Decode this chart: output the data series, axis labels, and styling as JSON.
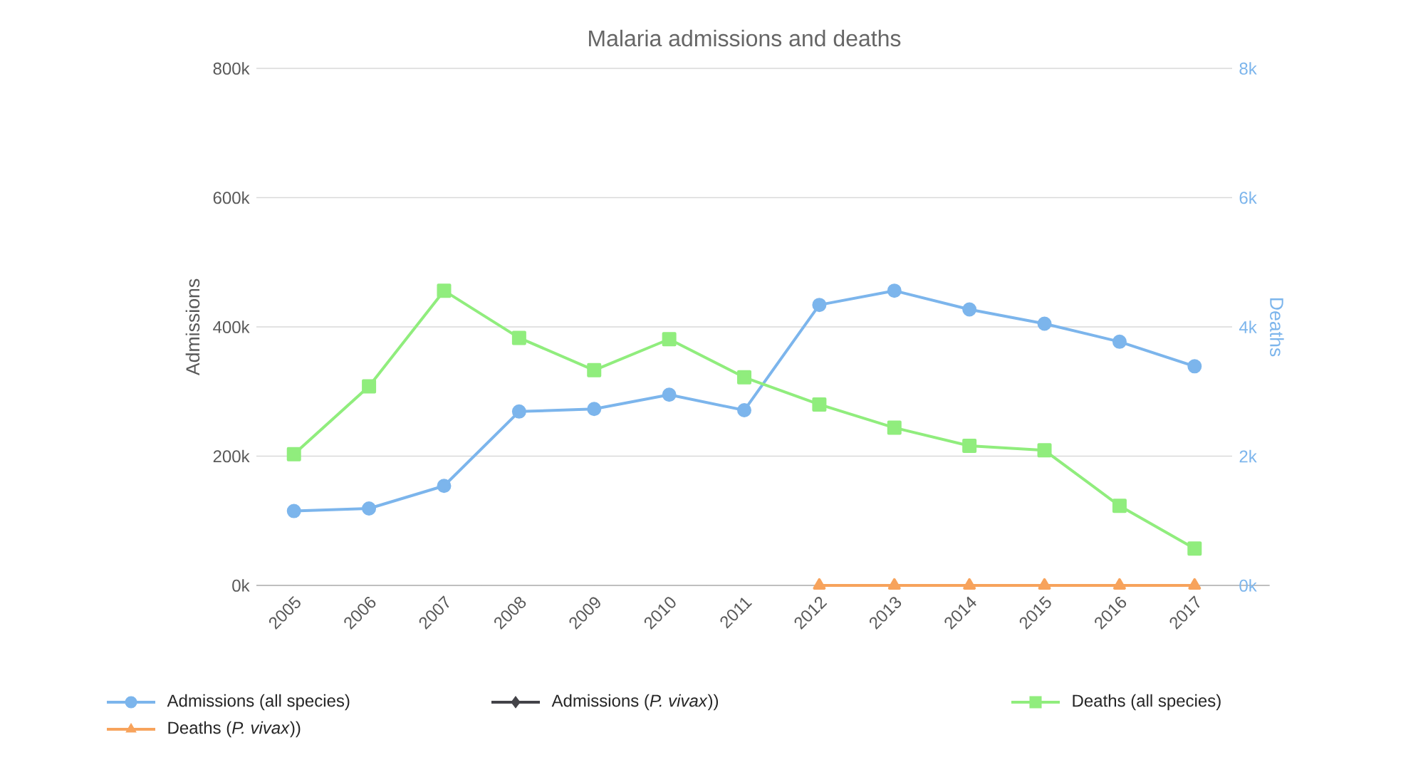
{
  "chart_data": {
    "type": "line",
    "title": "Malaria admissions and deaths",
    "categories": [
      "2005",
      "2006",
      "2007",
      "2008",
      "2009",
      "2010",
      "2011",
      "2012",
      "2013",
      "2014",
      "2015",
      "2016",
      "2017"
    ],
    "series": [
      {
        "name": "Admissions (all species)",
        "color": "#7cb5ec",
        "marker": "circle",
        "values": [
          115000,
          119000,
          154000,
          269000,
          273000,
          295000,
          271000,
          434000,
          456000,
          427000,
          405000,
          377000,
          339000
        ]
      },
      {
        "name": "Admissions (*P. vivax*))",
        "color": "#434348",
        "marker": "diamond",
        "values": [
          null,
          null,
          null,
          null,
          null,
          null,
          null,
          null,
          null,
          null,
          null,
          null,
          null
        ]
      },
      {
        "name": "Deaths (all species)",
        "color": "#90ed7d",
        "marker": "square",
        "axis": "y2",
        "values": [
          2030,
          3080,
          4560,
          3830,
          3330,
          3810,
          3220,
          2800,
          2440,
          2160,
          2090,
          1230,
          570
        ]
      },
      {
        "name": "Deaths (*P. vivax*))",
        "color": "#f7a35c",
        "marker": "triangle",
        "axis": "y2",
        "values": [
          null,
          null,
          null,
          null,
          null,
          null,
          null,
          0,
          0,
          0,
          0,
          0,
          0
        ]
      }
    ],
    "ylabel": "Admissions",
    "y2label": "Deaths",
    "ylim": [
      0,
      800000
    ],
    "yticks": [
      {
        "value": 0,
        "label": "0k"
      },
      {
        "value": 200000,
        "label": "200k"
      },
      {
        "value": 400000,
        "label": "400k"
      },
      {
        "value": 600000,
        "label": "600k"
      },
      {
        "value": 800000,
        "label": "800k"
      }
    ],
    "y2lim": [
      0,
      8000
    ],
    "y2ticks": [
      {
        "value": 0,
        "label": "0k"
      },
      {
        "value": 2000,
        "label": "2k"
      },
      {
        "value": 4000,
        "label": "4k"
      },
      {
        "value": 6000,
        "label": "6k"
      },
      {
        "value": 8000,
        "label": "8k"
      }
    ],
    "grid": "y",
    "legend": "bottom",
    "line_style": "solid"
  }
}
